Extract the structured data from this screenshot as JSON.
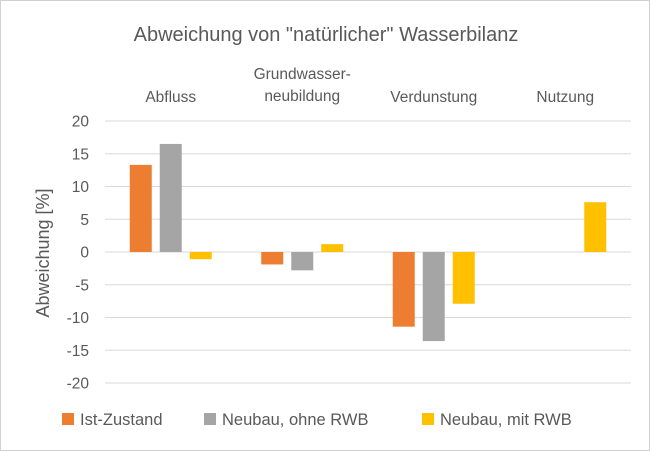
{
  "chart_data": {
    "type": "bar",
    "title": "Abweichung von \"natürlicher\" Wasserbilanz",
    "categories": [
      [
        "Abfluss"
      ],
      [
        "Grundwasser-",
        "neubildung"
      ],
      [
        "Verdunstung"
      ],
      [
        "Nutzung"
      ]
    ],
    "ylabel": "Abweichung [%]",
    "xlabel": "",
    "ylim": [
      -20,
      20
    ],
    "yticks": [
      20,
      15,
      10,
      5,
      0,
      -5,
      -10,
      -15,
      -20
    ],
    "grid": true,
    "legend_position": "bottom",
    "series": [
      {
        "name": "Ist-Zustand",
        "color": "#ED7D31",
        "values": [
          13.3,
          -1.9,
          -11.4,
          null
        ]
      },
      {
        "name": "Neubau, ohne RWB",
        "color": "#A5A5A5",
        "values": [
          16.5,
          -2.8,
          -13.6,
          null
        ]
      },
      {
        "name": "Neubau, mit RWB",
        "color": "#FFC000",
        "values": [
          -1.1,
          1.2,
          -7.9,
          7.6
        ]
      }
    ]
  }
}
